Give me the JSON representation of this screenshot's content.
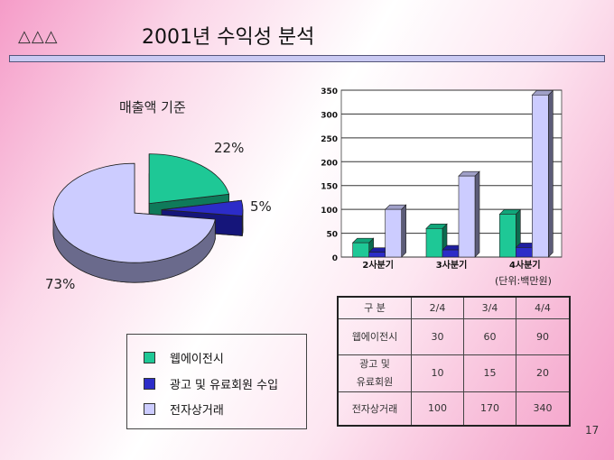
{
  "header": {
    "decoration": "△△△",
    "title": "2001년 수익성 분석"
  },
  "pie": {
    "title": "매출액 기준"
  },
  "colors": {
    "green": "#1ec896",
    "blue": "#2c2cc8",
    "lavender": "#ccccff"
  },
  "chart_data": [
    {
      "type": "pie",
      "title": "매출액 기준",
      "labels": [
        "웹에이전시",
        "광고 및 유료회원 수입",
        "전자상거래"
      ],
      "values": [
        22,
        5,
        73
      ],
      "value_labels": [
        "22%",
        "5%",
        "73%"
      ]
    },
    {
      "type": "bar",
      "categories": [
        "2사분기",
        "3사분기",
        "4사분기"
      ],
      "series": [
        {
          "name": "웹에이전시",
          "values": [
            30,
            60,
            90
          ]
        },
        {
          "name": "광고 및 유료회원 수입",
          "values": [
            10,
            15,
            20
          ]
        },
        {
          "name": "전자상거래",
          "values": [
            100,
            170,
            340
          ]
        }
      ],
      "ylim": [
        0,
        350
      ],
      "yticks": [
        "0",
        "50",
        "100",
        "150",
        "200",
        "250",
        "300",
        "350"
      ],
      "grid": true,
      "unit_note": "(단위:백만원)"
    }
  ],
  "legend": [
    "웹에이전시",
    "광고 및 유료회원 수입",
    "전자상거래"
  ],
  "table": {
    "header": [
      "구  분",
      "2/4",
      "3/4",
      "4/4"
    ],
    "rows": [
      [
        "웹에이전시",
        "30",
        "60",
        "90"
      ],
      [
        "광고 및\n유료회원",
        "10",
        "15",
        "20"
      ],
      [
        "전자상거래",
        "100",
        "170",
        "340"
      ]
    ]
  },
  "page_number": "17"
}
